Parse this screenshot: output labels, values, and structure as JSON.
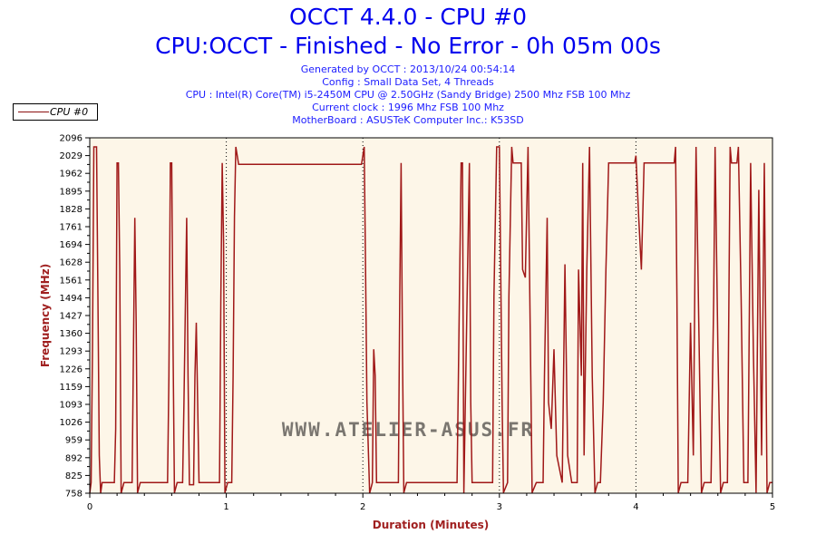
{
  "header": {
    "title": "OCCT 4.4.0 - CPU #0",
    "subtitle": "CPU:OCCT - Finished - No Error - 0h 05m 00s",
    "info": [
      "Generated by OCCT : 2013/10/24 00:54:14",
      "Config : Small Data Set, 4 Threads",
      "CPU : Intel(R) Core(TM) i5-2450M CPU @ 2.50GHz (Sandy Bridge) 2500 Mhz FSB 100 Mhz",
      "Current clock : 1996 Mhz FSB 100 Mhz",
      "MotherBoard : ASUSTeK Computer Inc.: K53SD"
    ]
  },
  "watermark": "WWW.ATELIER-ASUS.FR",
  "colors": {
    "line": "#a01818",
    "plot_bg": "#fdf6e8",
    "title": "#0000ee",
    "axis_label": "#a02020"
  },
  "chart_data": {
    "type": "line",
    "xlabel": "Duration (Minutes)",
    "ylabel": "Frequency (MHz)",
    "xlim": [
      0,
      5
    ],
    "ylim": [
      758,
      2096
    ],
    "xticks": [
      "0",
      "1",
      "2",
      "3",
      "4",
      "5"
    ],
    "yticks": [
      "758",
      "825",
      "892",
      "959",
      "1026",
      "1093",
      "1159",
      "1226",
      "1293",
      "1360",
      "1427",
      "1494",
      "1561",
      "1628",
      "1694",
      "1761",
      "1828",
      "1895",
      "1962",
      "2029",
      "2096"
    ],
    "legend": {
      "position": "top-left",
      "entries": [
        "CPU #0"
      ]
    },
    "series": [
      {
        "name": "CPU #0",
        "points": [
          [
            0,
            758
          ],
          [
            0.01,
            798
          ],
          [
            0.02,
            1300
          ],
          [
            0.03,
            2062
          ],
          [
            0.05,
            2062
          ],
          [
            0.06,
            1500
          ],
          [
            0.07,
            900
          ],
          [
            0.08,
            758
          ],
          [
            0.09,
            798
          ],
          [
            0.18,
            798
          ],
          [
            0.19,
            1000
          ],
          [
            0.2,
            2001
          ],
          [
            0.21,
            2001
          ],
          [
            0.22,
            1600
          ],
          [
            0.23,
            758
          ],
          [
            0.25,
            798
          ],
          [
            0.31,
            798
          ],
          [
            0.32,
            1300
          ],
          [
            0.33,
            1795
          ],
          [
            0.34,
            1400
          ],
          [
            0.35,
            760
          ],
          [
            0.37,
            798
          ],
          [
            0.57,
            798
          ],
          [
            0.58,
            1200
          ],
          [
            0.59,
            2001
          ],
          [
            0.6,
            2001
          ],
          [
            0.61,
            1300
          ],
          [
            0.62,
            760
          ],
          [
            0.64,
            798
          ],
          [
            0.68,
            798
          ],
          [
            0.69,
            1100
          ],
          [
            0.71,
            1795
          ],
          [
            0.72,
            1200
          ],
          [
            0.73,
            790
          ],
          [
            0.76,
            790
          ],
          [
            0.77,
            1200
          ],
          [
            0.78,
            1400
          ],
          [
            0.79,
            1100
          ],
          [
            0.8,
            798
          ],
          [
            0.95,
            798
          ],
          [
            0.96,
            1500
          ],
          [
            0.97,
            2001
          ],
          [
            0.98,
            1700
          ],
          [
            0.99,
            760
          ],
          [
            1.01,
            798
          ],
          [
            1.04,
            798
          ],
          [
            1.05,
            1200
          ],
          [
            1.06,
            1800
          ],
          [
            1.07,
            2062
          ],
          [
            1.09,
            1996
          ],
          [
            1.99,
            1996
          ],
          [
            2.01,
            2062
          ],
          [
            2.02,
            1600
          ],
          [
            2.03,
            1100
          ],
          [
            2.05,
            758
          ],
          [
            2.07,
            798
          ],
          [
            2.08,
            1300
          ],
          [
            2.09,
            1200
          ],
          [
            2.1,
            798
          ],
          [
            2.26,
            798
          ],
          [
            2.27,
            1500
          ],
          [
            2.28,
            2001
          ],
          [
            2.29,
            1300
          ],
          [
            2.3,
            760
          ],
          [
            2.32,
            798
          ],
          [
            2.69,
            798
          ],
          [
            2.7,
            1200
          ],
          [
            2.72,
            2001
          ],
          [
            2.73,
            2001
          ],
          [
            2.74,
            758
          ],
          [
            2.76,
            1400
          ],
          [
            2.78,
            2001
          ],
          [
            2.79,
            1100
          ],
          [
            2.8,
            798
          ],
          [
            2.95,
            798
          ],
          [
            2.96,
            1500
          ],
          [
            2.98,
            2062
          ],
          [
            3.0,
            2062
          ],
          [
            3.02,
            1100
          ],
          [
            3.03,
            760
          ],
          [
            3.06,
            798
          ],
          [
            3.07,
            1500
          ],
          [
            3.09,
            2062
          ],
          [
            3.1,
            2001
          ],
          [
            3.16,
            2001
          ],
          [
            3.17,
            1600
          ],
          [
            3.19,
            1570
          ],
          [
            3.21,
            2062
          ],
          [
            3.23,
            1200
          ],
          [
            3.24,
            760
          ],
          [
            3.27,
            798
          ],
          [
            3.32,
            798
          ],
          [
            3.33,
            1200
          ],
          [
            3.35,
            1795
          ],
          [
            3.36,
            1100
          ],
          [
            3.38,
            1000
          ],
          [
            3.4,
            1300
          ],
          [
            3.42,
            900
          ],
          [
            3.46,
            798
          ],
          [
            3.48,
            1620
          ],
          [
            3.5,
            900
          ],
          [
            3.53,
            798
          ],
          [
            3.57,
            798
          ],
          [
            3.58,
            1600
          ],
          [
            3.6,
            1200
          ],
          [
            3.61,
            2001
          ],
          [
            3.62,
            900
          ],
          [
            3.64,
            1600
          ],
          [
            3.66,
            2062
          ],
          [
            3.68,
            1200
          ],
          [
            3.7,
            760
          ],
          [
            3.72,
            798
          ],
          [
            3.74,
            798
          ],
          [
            3.76,
            1100
          ],
          [
            3.78,
            1600
          ],
          [
            3.8,
            2001
          ],
          [
            3.82,
            2001
          ],
          [
            3.99,
            2001
          ],
          [
            4.0,
            2029
          ],
          [
            4.02,
            1800
          ],
          [
            4.04,
            1600
          ],
          [
            4.06,
            2001
          ],
          [
            4.28,
            2001
          ],
          [
            4.29,
            2062
          ],
          [
            4.3,
            1500
          ],
          [
            4.31,
            760
          ],
          [
            4.33,
            798
          ],
          [
            4.38,
            798
          ],
          [
            4.4,
            1400
          ],
          [
            4.42,
            900
          ],
          [
            4.44,
            2062
          ],
          [
            4.46,
            1400
          ],
          [
            4.48,
            760
          ],
          [
            4.5,
            798
          ],
          [
            4.55,
            798
          ],
          [
            4.57,
            1500
          ],
          [
            4.58,
            2062
          ],
          [
            4.6,
            1300
          ],
          [
            4.62,
            760
          ],
          [
            4.64,
            798
          ],
          [
            4.67,
            798
          ],
          [
            4.69,
            2062
          ],
          [
            4.7,
            2001
          ],
          [
            4.74,
            2001
          ],
          [
            4.75,
            2062
          ],
          [
            4.77,
            1500
          ],
          [
            4.79,
            798
          ],
          [
            4.82,
            798
          ],
          [
            4.84,
            2001
          ],
          [
            4.86,
            1300
          ],
          [
            4.88,
            760
          ],
          [
            4.9,
            1900
          ],
          [
            4.92,
            900
          ],
          [
            4.94,
            2001
          ],
          [
            4.96,
            760
          ],
          [
            4.98,
            798
          ],
          [
            5,
            798
          ]
        ]
      }
    ]
  }
}
